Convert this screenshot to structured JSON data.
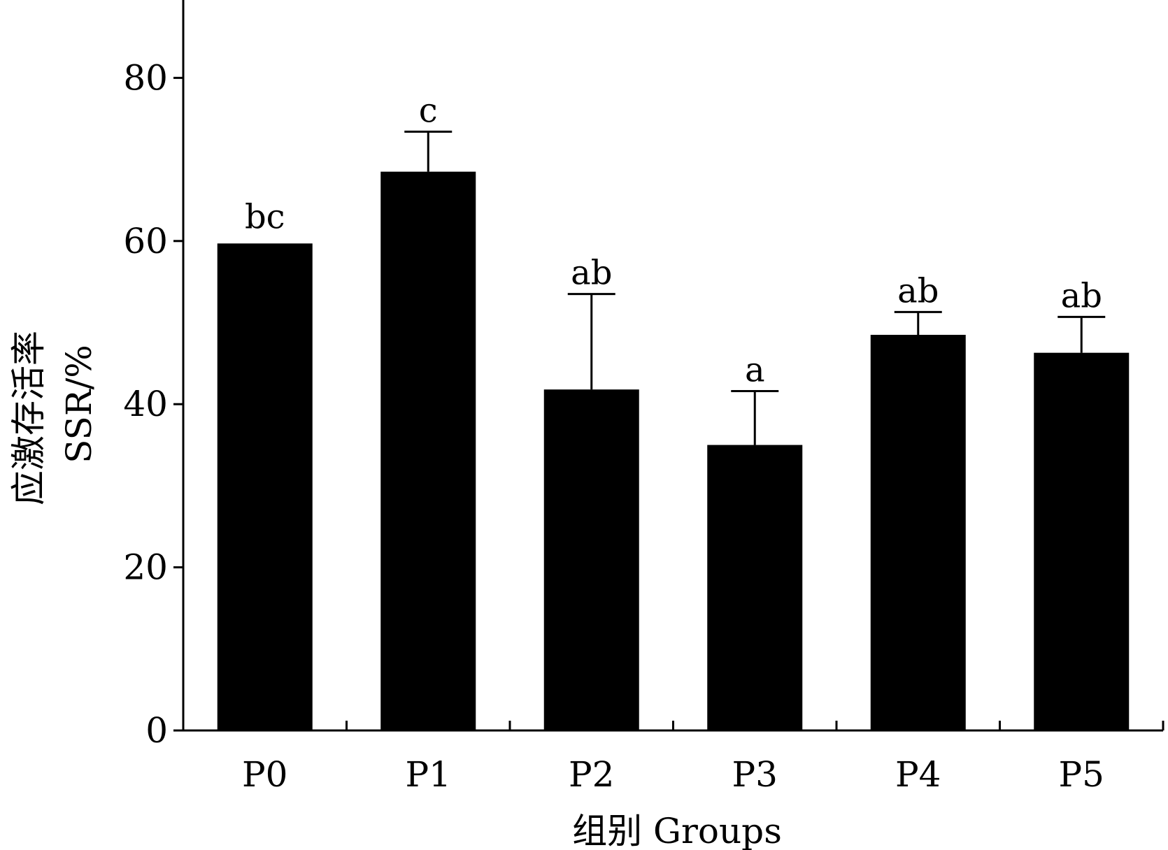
{
  "chart_data": {
    "type": "bar",
    "categories": [
      "P0",
      "P1",
      "P2",
      "P3",
      "P4",
      "P5"
    ],
    "values": [
      59.7,
      68.5,
      41.8,
      35.0,
      48.5,
      46.3
    ],
    "errors": [
      0,
      4.9,
      11.7,
      6.6,
      2.8,
      4.4
    ],
    "significance": [
      "bc",
      "c",
      "ab",
      "a",
      "ab",
      "ab"
    ],
    "ylim": [
      0,
      90
    ],
    "yticks": [
      0,
      20,
      40,
      60,
      80
    ],
    "xlabel": "组别 Groups",
    "ylabel_cn": "应激存活率",
    "ylabel_en": "SSR/%",
    "bar_color": "#000000",
    "grid": false
  }
}
